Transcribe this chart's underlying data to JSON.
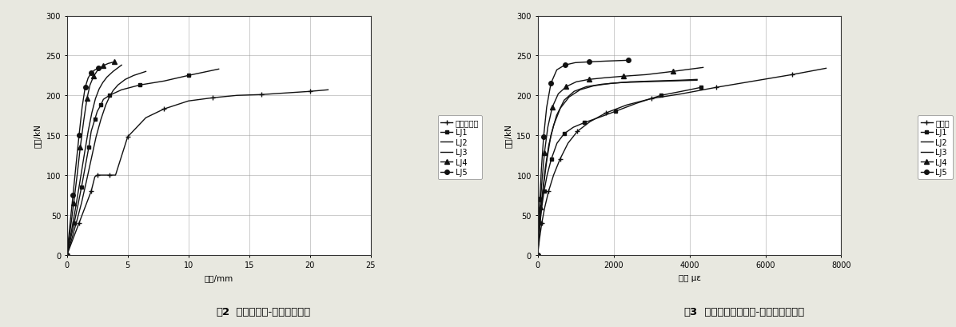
{
  "fig2": {
    "title_num": "图2",
    "title_text": "  试件的剪力-跨中挠度曲线",
    "xlabel": "挠度/mm",
    "ylabel": "荷载/kN",
    "xlim": [
      0,
      25
    ],
    "ylim": [
      0,
      300
    ],
    "xticks": [
      0,
      5,
      10,
      15,
      20,
      25
    ],
    "yticks": [
      0,
      50,
      100,
      150,
      200,
      250,
      300
    ],
    "legend_name1": "抗剪对比梁",
    "legend_names": [
      "抗剪对比梁",
      "LJ1",
      "LJ2",
      "LJ3",
      "LJ4",
      "LJ5"
    ],
    "series": {
      "抗剪对比梁": {
        "x": [
          0,
          0.5,
          1.0,
          1.5,
          2.0,
          2.3,
          2.5,
          3.0,
          3.5,
          4.0,
          5.0,
          6.5,
          8.0,
          10.0,
          12.0,
          14.0,
          16.0,
          18.0,
          20.0,
          21.5
        ],
        "y": [
          0,
          20,
          40,
          60,
          80,
          98,
          100,
          100,
          100,
          100,
          148,
          172,
          183,
          193,
          197,
          200,
          201,
          203,
          205,
          207
        ],
        "marker": "+",
        "markersize": 5
      },
      "LJ1": {
        "x": [
          0,
          0.3,
          0.6,
          0.9,
          1.2,
          1.5,
          1.8,
          2.0,
          2.3,
          2.5,
          2.8,
          3.0,
          3.5,
          4.5,
          6.0,
          8.0,
          10.0,
          12.5
        ],
        "y": [
          0,
          20,
          40,
          62,
          85,
          110,
          135,
          155,
          170,
          180,
          188,
          195,
          200,
          207,
          213,
          218,
          225,
          233
        ],
        "marker": "s",
        "markersize": 3
      },
      "LJ2": {
        "x": [
          0,
          0.4,
          0.8,
          1.2,
          1.6,
          2.0,
          2.4,
          2.8,
          3.2,
          3.5,
          3.8,
          4.2,
          4.8,
          5.5,
          6.5
        ],
        "y": [
          0,
          20,
          42,
          65,
          92,
          120,
          148,
          170,
          188,
          198,
          206,
          213,
          220,
          225,
          230
        ],
        "marker": "None",
        "markersize": 3
      },
      "LJ3": {
        "x": [
          0,
          0.35,
          0.7,
          1.05,
          1.4,
          1.75,
          2.05,
          2.35,
          2.65,
          2.95,
          3.3,
          3.8,
          4.5
        ],
        "y": [
          0,
          28,
          58,
          90,
          123,
          155,
          178,
          196,
          208,
          216,
          223,
          230,
          238
        ],
        "marker": "None",
        "markersize": 3
      },
      "LJ4": {
        "x": [
          0,
          0.28,
          0.56,
          0.84,
          1.1,
          1.38,
          1.65,
          1.9,
          2.2,
          2.55,
          2.95,
          3.4,
          3.9
        ],
        "y": [
          0,
          32,
          65,
          100,
          135,
          168,
          196,
          213,
          224,
          232,
          237,
          240,
          242
        ],
        "marker": "^",
        "markersize": 4
      },
      "LJ5": {
        "x": [
          0,
          0.25,
          0.5,
          0.75,
          1.0,
          1.25,
          1.5,
          1.75,
          2.0,
          2.3,
          2.6,
          3.0
        ],
        "y": [
          0,
          38,
          75,
          113,
          150,
          185,
          210,
          222,
          228,
          232,
          234,
          235
        ],
        "marker": "o",
        "markersize": 4
      }
    }
  },
  "fig3": {
    "title_num": "图3",
    "title_text": "  试验梁腹板的荷载-应变曲线对比图",
    "xlabel": "应变 με",
    "ylabel": "荷载/kN",
    "xlim": [
      0,
      8000
    ],
    "ylim": [
      0,
      300
    ],
    "xticks": [
      0,
      2000,
      4000,
      6000,
      8000
    ],
    "yticks": [
      0,
      50,
      100,
      150,
      200,
      250,
      300
    ],
    "legend_name1": "对比梁",
    "legend_names": [
      "对比梁",
      "LJ1",
      "LJ2",
      "LJ3",
      "LJ4",
      "LJ5"
    ],
    "series": {
      "对比梁": {
        "x": [
          0,
          50,
          110,
          190,
          290,
          420,
          590,
          800,
          1050,
          1380,
          1800,
          2350,
          3000,
          3800,
          4700,
          5700,
          6700,
          7600
        ],
        "y": [
          0,
          20,
          40,
          60,
          80,
          100,
          120,
          140,
          155,
          167,
          178,
          188,
          196,
          202,
          210,
          218,
          226,
          234
        ],
        "marker": "+",
        "markersize": 5
      },
      "LJ1": {
        "x": [
          0,
          30,
          65,
          110,
          170,
          250,
          360,
          510,
          700,
          940,
          1240,
          1600,
          2050,
          2600,
          3250,
          4000,
          4300
        ],
        "y": [
          0,
          20,
          40,
          60,
          80,
          100,
          120,
          140,
          152,
          160,
          166,
          172,
          180,
          190,
          200,
          207,
          210
        ],
        "marker": "s",
        "markersize": 3
      },
      "LJ2": {
        "x": [
          0,
          35,
          75,
          130,
          200,
          295,
          425,
          600,
          830,
          1120,
          1480,
          1920,
          2440,
          3050,
          3750,
          4200
        ],
        "y": [
          0,
          25,
          50,
          78,
          108,
          138,
          163,
          184,
          198,
          207,
          212,
          215,
          217,
          218,
          219,
          220
        ],
        "marker": "None",
        "markersize": 3
      },
      "LJ3": {
        "x": [
          0,
          40,
          90,
          155,
          240,
          350,
          500,
          700,
          960,
          1290,
          1700,
          2200,
          2800,
          3500,
          4200
        ],
        "y": [
          0,
          28,
          56,
          86,
          118,
          150,
          175,
          194,
          205,
          211,
          214,
          216,
          217,
          218,
          219
        ],
        "marker": "None",
        "markersize": 3
      },
      "LJ4": {
        "x": [
          0,
          30,
          65,
          115,
          180,
          268,
          385,
          545,
          755,
          1020,
          1350,
          1760,
          2260,
          2860,
          3560,
          4360
        ],
        "y": [
          0,
          30,
          60,
          93,
          128,
          160,
          185,
          202,
          211,
          217,
          220,
          222,
          224,
          226,
          230,
          235
        ],
        "marker": "^",
        "markersize": 4
      },
      "LJ5": {
        "x": [
          0,
          28,
          58,
          100,
          158,
          238,
          350,
          505,
          715,
          990,
          1350,
          1810,
          2380
        ],
        "y": [
          0,
          35,
          70,
          108,
          148,
          185,
          215,
          232,
          238,
          241,
          242,
          243,
          244
        ],
        "marker": "o",
        "markersize": 4
      }
    }
  },
  "bg_color": "#e8e8e0",
  "plot_bg_color": "#ffffff",
  "grid_color": "#999999",
  "line_color": "#111111",
  "font_size": 7.5,
  "tick_font_size": 7,
  "legend_font_size": 7,
  "caption_font_size": 9.5
}
